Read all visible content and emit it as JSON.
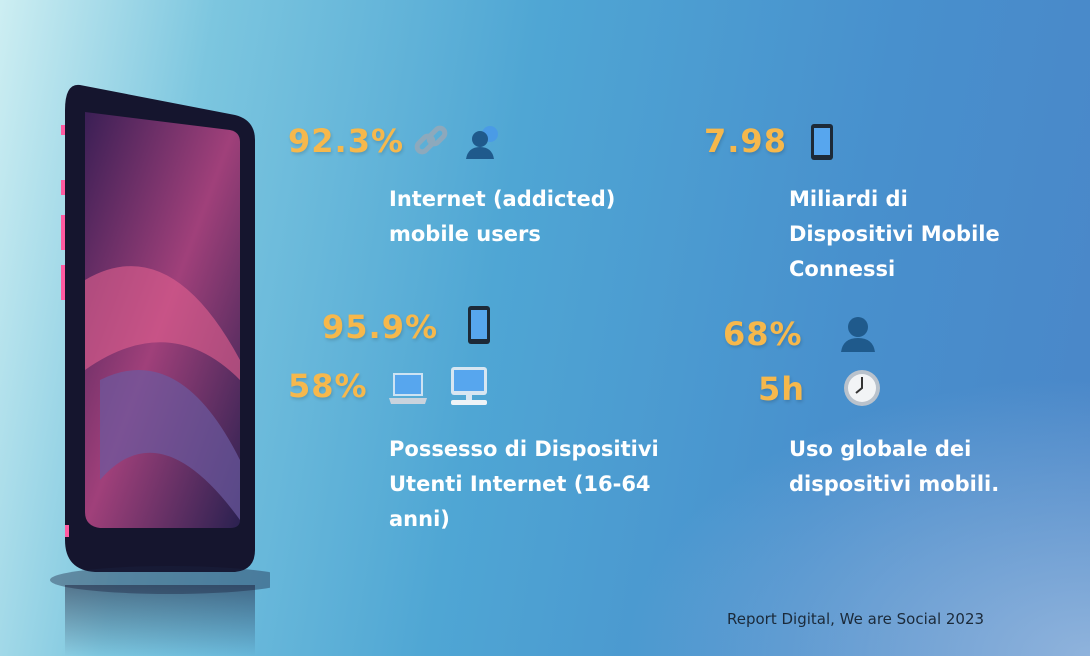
{
  "stats": [
    {
      "value": "92.3%",
      "icons": [
        "link-icon",
        "users-icon"
      ]
    },
    {
      "value": "7.98",
      "icons": [
        "mobile-phone-icon"
      ]
    },
    {
      "value": "95.9%",
      "icons": [
        "mobile-phone-icon"
      ]
    },
    {
      "value": "58%",
      "icons": [
        "laptop-icon",
        "desktop-computer-icon"
      ]
    },
    {
      "value": "68%",
      "icons": [
        "user-icon"
      ]
    },
    {
      "value": "5h",
      "icons": [
        "clock-icon"
      ]
    }
  ],
  "labels": {
    "internet_users": [
      "Internet (addicted)",
      "mobile users"
    ],
    "devices": [
      "Miliardi di",
      "Dispositivi Mobile",
      "Connessi"
    ],
    "ownership": [
      "Possesso di Dispositivi",
      "Utenti Internet (16-64",
      "anni)"
    ],
    "usage": [
      "Uso globale dei",
      "dispositivi mobili."
    ]
  },
  "footer": "Report Digital, We are Social 2023",
  "colors": {
    "accent": "#f6b84c",
    "label": "#ffffff"
  }
}
